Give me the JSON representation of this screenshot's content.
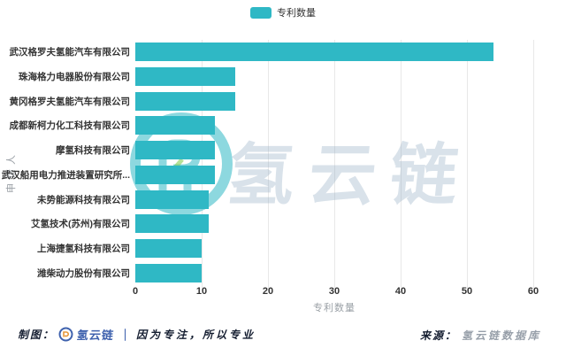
{
  "legend": {
    "label": "专利数量"
  },
  "watermark": {
    "text": "氢云链"
  },
  "axes": {
    "x_title": "专利数量",
    "y_title": "申请人"
  },
  "footer": {
    "left_prefix": "制图：",
    "left_brand": "氢云链",
    "left_separator": "｜",
    "left_slogan": "因为专注，所以专业",
    "right_prefix": "来源：",
    "right_source": "氢云链数据库"
  },
  "colors": {
    "bar": "#2FB8C5",
    "grid": "#E8E8E8",
    "tick_text": "#333333",
    "axis_title": "#9AA0A6",
    "brand_blue": "#3F62AE",
    "watermark_teal": "#2FB8C5"
  },
  "chart_data": {
    "type": "bar",
    "orientation": "horizontal",
    "title": "",
    "xlabel": "专利数量",
    "ylabel": "申请人",
    "series_name": "专利数量",
    "legend_position": "top-center",
    "grid": true,
    "xlim": [
      0,
      60
    ],
    "xticks": [
      0,
      10,
      20,
      30,
      40,
      50,
      60
    ],
    "categories": [
      "武汉格罗夫氢能汽车有限公司",
      "珠海格力电器股份有限公司",
      "黄冈格罗夫氢能汽车有限公司",
      "成都新柯力化工科技有限公司",
      "摩氢科技有限公司",
      "武汉船用电力推进装置研究所...",
      "未势能源科技有限公司",
      "艾氢技术(苏州)有限公司",
      "上海捷氢科技有限公司",
      "潍柴动力股份有限公司"
    ],
    "values": [
      54,
      15,
      15,
      12,
      12,
      12,
      11,
      11,
      10,
      10
    ]
  }
}
